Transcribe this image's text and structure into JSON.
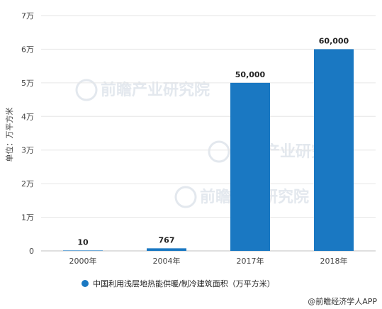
{
  "chart_data": {
    "type": "bar",
    "categories": [
      "2000年",
      "2004年",
      "2017年",
      "2018年"
    ],
    "values": [
      10,
      767,
      50000,
      60000
    ],
    "value_labels": [
      "10",
      "767",
      "50,000",
      "60,000"
    ],
    "ylabel": "单位：万平方米",
    "ylim": [
      0,
      70000
    ],
    "yticks": [
      0,
      10000,
      20000,
      30000,
      40000,
      50000,
      60000,
      70000
    ],
    "ytick_labels": [
      "0",
      "1万",
      "2万",
      "3万",
      "4万",
      "5万",
      "6万",
      "7万"
    ],
    "grid": true,
    "legend": {
      "position": "bottom",
      "label": "中国利用浅层地热能供暖/制冷建筑面积（万平方米）"
    },
    "bar_color": "#1a78c2"
  },
  "credit": "@前瞻经济学人APP",
  "watermark": "前瞻产业研究院"
}
